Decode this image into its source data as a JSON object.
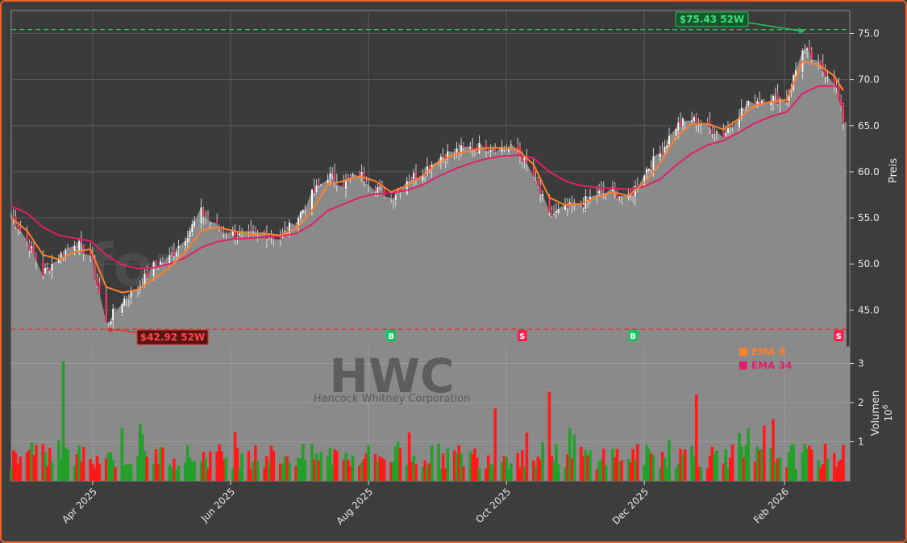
{
  "watermark": "forexsignale.trade",
  "ticker_watermark": "HWC",
  "company_watermark": "Hancock Whitney Corporation",
  "colors": {
    "up": "#22a02a",
    "down": "#ff1a1a",
    "ema8": "#ff7f2a",
    "ema34": "#e0206a",
    "high_line": "#2fbf5a",
    "low_line": "#e03030",
    "buy": "#1fbf5f",
    "sell": "#ff1f4f"
  },
  "chart_data": [
    {
      "type": "line",
      "panel": "price",
      "ylabel": "Preis",
      "ylim": [
        41.0,
        77.5
      ],
      "yticks": [
        "45.0",
        "50.0",
        "55.0",
        "60.0",
        "65.0",
        "70.0",
        "75.0"
      ],
      "x_range": [
        "2025-02-24",
        "2026-02-27"
      ],
      "xtick_labels": [
        "Apr 2025",
        "Jun 2025",
        "Aug 2025",
        "Oct 2025",
        "Dec 2025",
        "Feb 2026"
      ],
      "xtick_dates": [
        "2025-04-01",
        "2025-06-01",
        "2025-08-01",
        "2025-10-01",
        "2025-12-01",
        "2026-02-01"
      ],
      "close_points": [
        [
          "2025-02-24",
          55.3
        ],
        [
          "2025-03-03",
          52.5
        ],
        [
          "2025-03-10",
          49.0
        ],
        [
          "2025-03-17",
          50.8
        ],
        [
          "2025-03-24",
          52.4
        ],
        [
          "2025-03-31",
          51.0
        ],
        [
          "2025-04-07",
          43.5
        ],
        [
          "2025-04-14",
          46.0
        ],
        [
          "2025-04-21",
          47.5
        ],
        [
          "2025-04-28",
          49.8
        ],
        [
          "2025-05-05",
          50.7
        ],
        [
          "2025-05-12",
          53.0
        ],
        [
          "2025-05-19",
          55.6
        ],
        [
          "2025-05-26",
          54.0
        ],
        [
          "2025-06-02",
          53.3
        ],
        [
          "2025-06-09",
          53.0
        ],
        [
          "2025-06-16",
          53.4
        ],
        [
          "2025-06-23",
          52.8
        ],
        [
          "2025-06-30",
          54.8
        ],
        [
          "2025-07-07",
          57.5
        ],
        [
          "2025-07-14",
          59.6
        ],
        [
          "2025-07-21",
          58.8
        ],
        [
          "2025-07-28",
          59.8
        ],
        [
          "2025-08-04",
          58.5
        ],
        [
          "2025-08-11",
          57.2
        ],
        [
          "2025-08-18",
          59.2
        ],
        [
          "2025-08-25",
          60.0
        ],
        [
          "2025-09-01",
          61.6
        ],
        [
          "2025-09-08",
          62.2
        ],
        [
          "2025-09-15",
          62.6
        ],
        [
          "2025-09-22",
          62.8
        ],
        [
          "2025-09-29",
          62.6
        ],
        [
          "2025-10-06",
          62.4
        ],
        [
          "2025-10-13",
          59.5
        ],
        [
          "2025-10-20",
          55.2
        ],
        [
          "2025-10-27",
          56.0
        ],
        [
          "2025-11-03",
          56.5
        ],
        [
          "2025-11-10",
          57.6
        ],
        [
          "2025-11-17",
          57.9
        ],
        [
          "2025-11-24",
          57.0
        ],
        [
          "2025-12-01",
          60.0
        ],
        [
          "2025-12-08",
          62.0
        ],
        [
          "2025-12-15",
          65.0
        ],
        [
          "2025-12-22",
          65.7
        ],
        [
          "2025-12-29",
          64.9
        ],
        [
          "2026-01-05",
          64.0
        ],
        [
          "2026-01-12",
          66.5
        ],
        [
          "2026-01-19",
          67.8
        ],
        [
          "2026-01-26",
          68.0
        ],
        [
          "2026-02-02",
          67.8
        ],
        [
          "2026-02-09",
          73.5
        ],
        [
          "2026-02-16",
          71.5
        ],
        [
          "2026-02-23",
          70.0
        ],
        [
          "2026-02-27",
          65.5
        ]
      ],
      "series": [
        {
          "name": "EMA 8",
          "points": [
            [
              "2025-02-24",
              55.0
            ],
            [
              "2025-03-03",
              53.6
            ],
            [
              "2025-03-10",
              51.0
            ],
            [
              "2025-03-17",
              50.5
            ],
            [
              "2025-03-24",
              51.3
            ],
            [
              "2025-03-31",
              51.6
            ],
            [
              "2025-04-07",
              47.5
            ],
            [
              "2025-04-14",
              46.9
            ],
            [
              "2025-04-21",
              47.2
            ],
            [
              "2025-04-28",
              48.4
            ],
            [
              "2025-05-05",
              49.6
            ],
            [
              "2025-05-12",
              51.3
            ],
            [
              "2025-05-19",
              53.6
            ],
            [
              "2025-05-26",
              54.0
            ],
            [
              "2025-06-02",
              53.6
            ],
            [
              "2025-06-09",
              53.2
            ],
            [
              "2025-06-16",
              53.3
            ],
            [
              "2025-06-23",
              53.1
            ],
            [
              "2025-06-30",
              53.8
            ],
            [
              "2025-07-07",
              55.8
            ],
            [
              "2025-07-14",
              58.6
            ],
            [
              "2025-07-21",
              59.0
            ],
            [
              "2025-07-28",
              59.5
            ],
            [
              "2025-08-04",
              59.0
            ],
            [
              "2025-08-11",
              57.8
            ],
            [
              "2025-08-18",
              58.5
            ],
            [
              "2025-08-25",
              59.6
            ],
            [
              "2025-09-01",
              61.0
            ],
            [
              "2025-09-08",
              61.9
            ],
            [
              "2025-09-15",
              62.3
            ],
            [
              "2025-09-22",
              62.6
            ],
            [
              "2025-09-29",
              62.6
            ],
            [
              "2025-10-06",
              62.4
            ],
            [
              "2025-10-13",
              60.8
            ],
            [
              "2025-10-20",
              57.2
            ],
            [
              "2025-10-27",
              56.4
            ],
            [
              "2025-11-03",
              56.5
            ],
            [
              "2025-11-10",
              57.2
            ],
            [
              "2025-11-17",
              57.8
            ],
            [
              "2025-11-24",
              57.4
            ],
            [
              "2025-12-01",
              58.8
            ],
            [
              "2025-12-08",
              60.9
            ],
            [
              "2025-12-15",
              63.8
            ],
            [
              "2025-12-22",
              65.2
            ],
            [
              "2025-12-29",
              65.2
            ],
            [
              "2026-01-05",
              64.6
            ],
            [
              "2026-01-12",
              65.8
            ],
            [
              "2026-01-19",
              67.2
            ],
            [
              "2026-01-26",
              67.6
            ],
            [
              "2026-02-02",
              67.8
            ],
            [
              "2026-02-09",
              72.0
            ],
            [
              "2026-02-16",
              71.6
            ],
            [
              "2026-02-23",
              70.4
            ],
            [
              "2026-02-27",
              68.8
            ]
          ]
        },
        {
          "name": "EMA 34",
          "points": [
            [
              "2025-02-24",
              56.3
            ],
            [
              "2025-03-03",
              55.5
            ],
            [
              "2025-03-10",
              54.0
            ],
            [
              "2025-03-17",
              53.1
            ],
            [
              "2025-03-24",
              52.8
            ],
            [
              "2025-03-31",
              52.5
            ],
            [
              "2025-04-07",
              51.0
            ],
            [
              "2025-04-14",
              49.9
            ],
            [
              "2025-04-21",
              49.5
            ],
            [
              "2025-04-28",
              49.6
            ],
            [
              "2025-05-05",
              50.0
            ],
            [
              "2025-05-12",
              50.7
            ],
            [
              "2025-05-19",
              51.8
            ],
            [
              "2025-05-26",
              52.4
            ],
            [
              "2025-06-02",
              52.7
            ],
            [
              "2025-06-09",
              52.8
            ],
            [
              "2025-06-16",
              52.9
            ],
            [
              "2025-06-23",
              53.0
            ],
            [
              "2025-06-30",
              53.3
            ],
            [
              "2025-07-07",
              54.3
            ],
            [
              "2025-07-14",
              55.8
            ],
            [
              "2025-07-21",
              56.5
            ],
            [
              "2025-07-28",
              57.2
            ],
            [
              "2025-08-04",
              57.6
            ],
            [
              "2025-08-11",
              57.7
            ],
            [
              "2025-08-18",
              58.0
            ],
            [
              "2025-08-25",
              58.6
            ],
            [
              "2025-09-01",
              59.5
            ],
            [
              "2025-09-08",
              60.3
            ],
            [
              "2025-09-15",
              60.9
            ],
            [
              "2025-09-22",
              61.4
            ],
            [
              "2025-09-29",
              61.7
            ],
            [
              "2025-10-06",
              61.8
            ],
            [
              "2025-10-13",
              61.5
            ],
            [
              "2025-10-20",
              60.0
            ],
            [
              "2025-10-27",
              59.0
            ],
            [
              "2025-11-03",
              58.5
            ],
            [
              "2025-11-10",
              58.3
            ],
            [
              "2025-11-17",
              58.2
            ],
            [
              "2025-11-24",
              58.1
            ],
            [
              "2025-12-01",
              58.4
            ],
            [
              "2025-12-08",
              59.2
            ],
            [
              "2025-12-15",
              60.7
            ],
            [
              "2025-12-22",
              62.0
            ],
            [
              "2025-12-29",
              62.9
            ],
            [
              "2026-01-05",
              63.4
            ],
            [
              "2026-01-12",
              64.3
            ],
            [
              "2026-01-19",
              65.3
            ],
            [
              "2026-01-26",
              66.0
            ],
            [
              "2026-02-02",
              66.5
            ],
            [
              "2026-02-09",
              68.5
            ],
            [
              "2026-02-16",
              69.3
            ],
            [
              "2026-02-23",
              69.3
            ],
            [
              "2026-02-27",
              69.0
            ]
          ]
        }
      ],
      "legend": [
        "EMA 8",
        "EMA 34"
      ],
      "legend_position": "top-right of volume panel",
      "annotations": [
        {
          "text": "$75.43 52W",
          "date": "2026-02-10",
          "value": 75.43,
          "kind": "52-week high"
        },
        {
          "text": "$42.92 52W",
          "date": "2025-04-07",
          "value": 42.92,
          "kind": "52-week low"
        }
      ],
      "signals": [
        {
          "label": "B",
          "date": "2025-05-05",
          "type": "buy"
        },
        {
          "label": "B",
          "date": "2025-08-11",
          "type": "buy"
        },
        {
          "label": "S",
          "date": "2025-10-08",
          "type": "sell"
        },
        {
          "label": "B",
          "date": "2025-11-26",
          "type": "buy"
        },
        {
          "label": "S",
          "date": "2026-02-25",
          "type": "sell"
        }
      ],
      "last_value": 65.5,
      "grid": true
    },
    {
      "type": "bar",
      "panel": "volume",
      "ylabel": "Volumen",
      "yscale_label": "10^6",
      "ylim": [
        0,
        3.3
      ],
      "yticks": [
        "1",
        "2",
        "3"
      ],
      "highlights": [
        {
          "date": "2025-03-19",
          "value": 3.05,
          "color": "up"
        },
        {
          "date": "2025-09-26",
          "value": 1.85,
          "color": "down"
        },
        {
          "date": "2025-10-20",
          "value": 2.28,
          "color": "down"
        },
        {
          "date": "2025-12-24",
          "value": 2.2,
          "color": "down"
        },
        {
          "date": "2026-01-27",
          "value": 1.58,
          "color": "down"
        }
      ],
      "typical_range": [
        0.3,
        1.5
      ],
      "grid": true
    }
  ]
}
